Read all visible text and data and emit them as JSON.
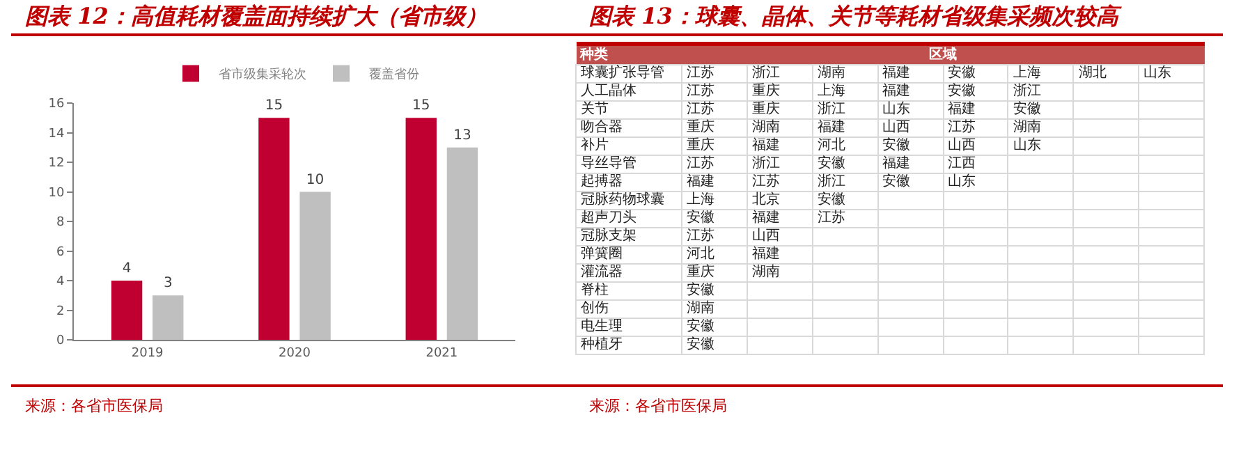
{
  "chart_data": [
    {
      "type": "bar",
      "title": "图表 12：高值耗材覆盖面持续扩大（省市级）",
      "categories": [
        "2019",
        "2020",
        "2021"
      ],
      "series": [
        {
          "name": "省市级集采轮次",
          "color": "#c00030",
          "values": [
            4,
            15,
            15
          ]
        },
        {
          "name": "覆盖省份",
          "color": "#bfbfbf",
          "values": [
            3,
            10,
            13
          ]
        }
      ],
      "ylim": [
        0,
        16
      ],
      "yticks": [
        0,
        2,
        4,
        6,
        8,
        10,
        12,
        14,
        16
      ],
      "grid": false,
      "legend": "top",
      "data_labels": true,
      "annotations": [
        "来源：各省市医保局"
      ]
    },
    {
      "type": "other",
      "title": "图表 13：球囊、晶体、关节等耗材省级集采频次较高",
      "categories": [
        "种类",
        "区域"
      ],
      "y_categories": [
        "球囊扩张导管",
        "人工晶体",
        "关节",
        "吻合器",
        "补片",
        "导丝导管",
        "起搏器",
        "冠脉药物球囊",
        "超声刀头",
        "冠脉支架",
        "弹簧圈",
        "灌流器",
        "脊柱",
        "创伤",
        "电生理",
        "种植牙"
      ],
      "cell_labels": [
        [
          "江苏",
          "浙江",
          "湖南",
          "福建",
          "安徽",
          "上海",
          "湖北",
          "山东"
        ],
        [
          "江苏",
          "重庆",
          "上海",
          "福建",
          "安徽",
          "浙江"
        ],
        [
          "江苏",
          "重庆",
          "浙江",
          "山东",
          "福建",
          "安徽"
        ],
        [
          "重庆",
          "湖南",
          "福建",
          "山西",
          "江苏",
          "湖南"
        ],
        [
          "重庆",
          "福建",
          "河北",
          "安徽",
          "山西",
          "山东"
        ],
        [
          "江苏",
          "浙江",
          "安徽",
          "福建",
          "江西"
        ],
        [
          "福建",
          "江苏",
          "浙江",
          "安徽",
          "山东"
        ],
        [
          "上海",
          "北京",
          "安徽"
        ],
        [
          "安徽",
          "福建",
          "江苏"
        ],
        [
          "江苏",
          "山西"
        ],
        [
          "河北",
          "福建"
        ],
        [
          "重庆",
          "湖南"
        ],
        [
          "安徽"
        ],
        [
          "湖南"
        ],
        [
          "安徽"
        ],
        [
          "安徽"
        ]
      ],
      "annotations": [
        "来源：各省市医保局"
      ]
    }
  ]
}
